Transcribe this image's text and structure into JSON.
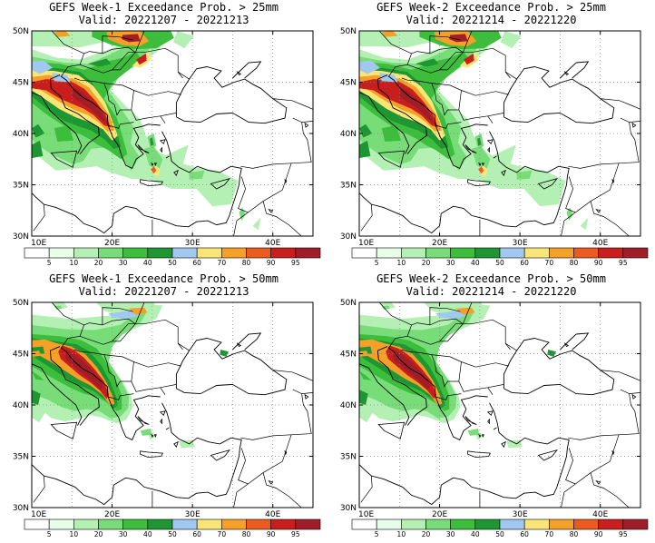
{
  "panels": [
    {
      "title": "GEFS Week-1 Exceedance Prob. > 25mm",
      "valid": "Valid: 20221207 - 20221213",
      "variant": "25"
    },
    {
      "title": "GEFS Week-2 Exceedance Prob. > 25mm",
      "valid": "Valid: 20221214 - 20221220",
      "variant": "25"
    },
    {
      "title": "GEFS Week-1 Exceedance Prob. > 50mm",
      "valid": "Valid: 20221207 - 20221213",
      "variant": "50"
    },
    {
      "title": "GEFS Week-2 Exceedance Prob. > 50mm",
      "valid": "Valid: 20221214 - 20221220",
      "variant": "50"
    }
  ],
  "axes": {
    "lat_labels": [
      "50N",
      "45N",
      "40N",
      "35N",
      "30N"
    ],
    "lon_labels": [
      "10E",
      "20E",
      "30E",
      "40E"
    ],
    "lat_range": [
      30,
      50
    ],
    "lon_range": [
      10,
      45
    ]
  },
  "colorbar": {
    "labels": [
      "5",
      "10",
      "20",
      "30",
      "40",
      "50",
      "60",
      "70",
      "80",
      "90",
      "95"
    ],
    "colors": [
      "#ffffff",
      "#e6ffe6",
      "#b4f0b4",
      "#78dc78",
      "#3cbe3c",
      "#1e9632",
      "#a0c8f0",
      "#fae678",
      "#f5a028",
      "#eb5a1e",
      "#c81e1e",
      "#a01e28"
    ]
  }
}
